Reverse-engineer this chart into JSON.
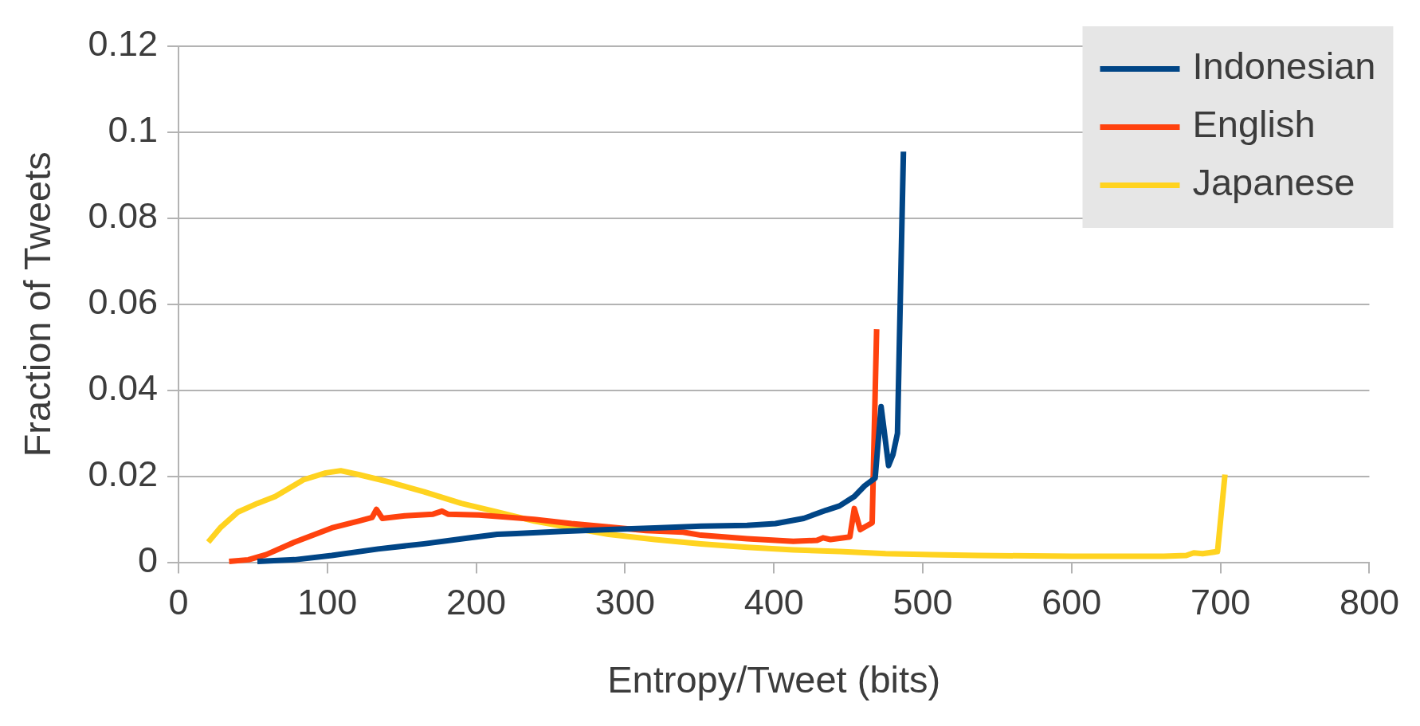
{
  "chart_data": {
    "type": "line",
    "xlabel": "Entropy/Tweet (bits)",
    "ylabel": "Fraction of Tweets",
    "xlim": [
      0,
      800
    ],
    "xticks": [
      0,
      100,
      200,
      300,
      400,
      500,
      600,
      700,
      800
    ],
    "ylim": [
      0,
      0.12
    ],
    "yticks": [
      0,
      0.02,
      0.04,
      0.06,
      0.08,
      0.1,
      0.12
    ],
    "grid": "y",
    "legend": "top right",
    "marker": "none",
    "line_style": "solid",
    "series": [
      {
        "name": "Indonesian",
        "color": "#004586",
        "x": [
          53,
          78,
          103,
          134,
          165,
          196,
          214,
          227,
          258,
          289,
          320,
          351,
          382,
          401,
          420,
          435,
          444,
          454,
          461,
          468,
          472,
          477,
          480,
          483,
          487
        ],
        "values": [
          0.0002,
          0.0006,
          0.0016,
          0.0031,
          0.0043,
          0.0057,
          0.0065,
          0.0067,
          0.0072,
          0.0076,
          0.008,
          0.0084,
          0.0086,
          0.009,
          0.0102,
          0.0121,
          0.0131,
          0.0153,
          0.0178,
          0.0196,
          0.0362,
          0.0225,
          0.0251,
          0.03,
          0.0955
        ]
      },
      {
        "name": "English",
        "color": "#ff420e",
        "x": [
          34,
          47,
          59,
          78,
          103,
          121,
          130,
          133,
          137,
          152,
          171,
          177,
          181,
          202,
          239,
          264,
          289,
          314,
          339,
          351,
          382,
          413,
          429,
          433,
          438,
          451,
          454,
          458,
          466,
          469
        ],
        "values": [
          0.0002,
          0.0006,
          0.0018,
          0.0047,
          0.008,
          0.0096,
          0.0104,
          0.0123,
          0.0102,
          0.0108,
          0.0112,
          0.0119,
          0.0112,
          0.011,
          0.01,
          0.009,
          0.0082,
          0.0074,
          0.007,
          0.0063,
          0.0055,
          0.0049,
          0.0051,
          0.0057,
          0.0053,
          0.0059,
          0.0125,
          0.0076,
          0.0092,
          0.0542
        ]
      },
      {
        "name": "Japanese",
        "color": "#ffd320",
        "x": [
          20,
          28,
          40,
          53,
          65,
          84,
          99,
          109,
          121,
          140,
          165,
          190,
          214,
          239,
          264,
          289,
          320,
          351,
          382,
          413,
          444,
          475,
          506,
          537,
          600,
          631,
          662,
          677,
          682,
          688,
          698,
          703
        ],
        "values": [
          0.0047,
          0.008,
          0.0117,
          0.0137,
          0.0153,
          0.0192,
          0.0208,
          0.0213,
          0.0204,
          0.0188,
          0.0164,
          0.0137,
          0.0117,
          0.0096,
          0.008,
          0.0065,
          0.0053,
          0.0043,
          0.0035,
          0.0029,
          0.0025,
          0.002,
          0.0018,
          0.0016,
          0.0014,
          0.0014,
          0.0014,
          0.0016,
          0.0022,
          0.002,
          0.0025,
          0.0204
        ]
      }
    ]
  }
}
